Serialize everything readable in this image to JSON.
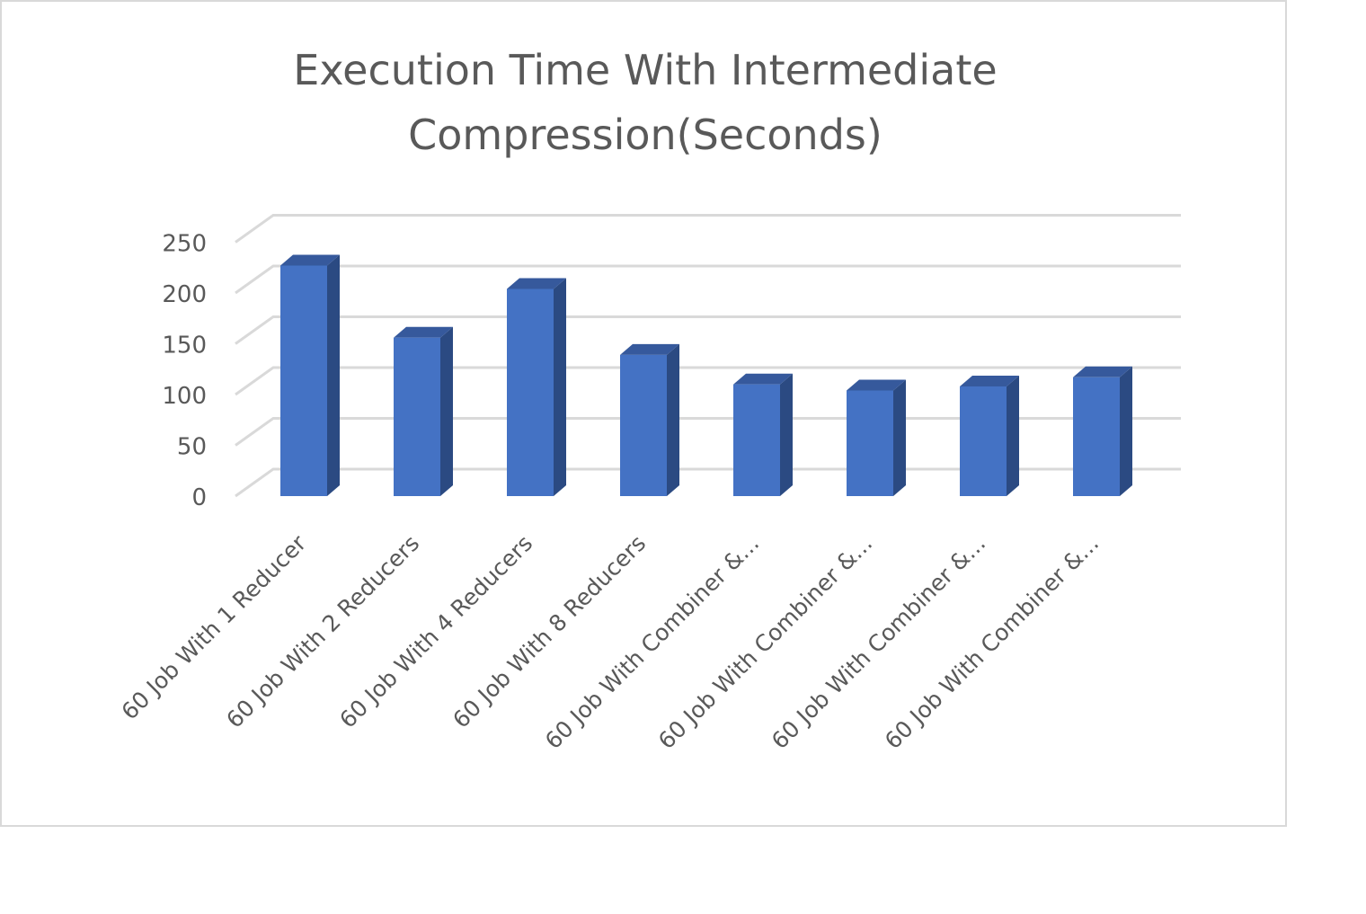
{
  "chart_data": {
    "type": "bar",
    "title": "Execution Time With Intermediate Compression(Seconds)",
    "categories": [
      "60 Job With 1 Reducer",
      "60 Job With 2 Reducers",
      "60 Job With 4 Reducers",
      "60 Job With 8 Reducers",
      "60 Job With Combiner &...",
      "60 Job With Combiner &...",
      "60 Job With Combiner &...",
      "60 Job With Combiner &..."
    ],
    "values": [
      227,
      156,
      204,
      139,
      110,
      104,
      108,
      117
    ],
    "yticks": [
      0,
      50,
      100,
      150,
      200,
      250
    ],
    "ylim": [
      0,
      250
    ],
    "xlabel": "",
    "ylabel": "",
    "grid": true,
    "legend": "none",
    "style": "3d-column",
    "colors": {
      "bar_front": "#4472c4",
      "bar_side": "#2b4a82",
      "bar_top": "#36599c",
      "grid": "#d9d9d9",
      "text": "#595959"
    }
  }
}
